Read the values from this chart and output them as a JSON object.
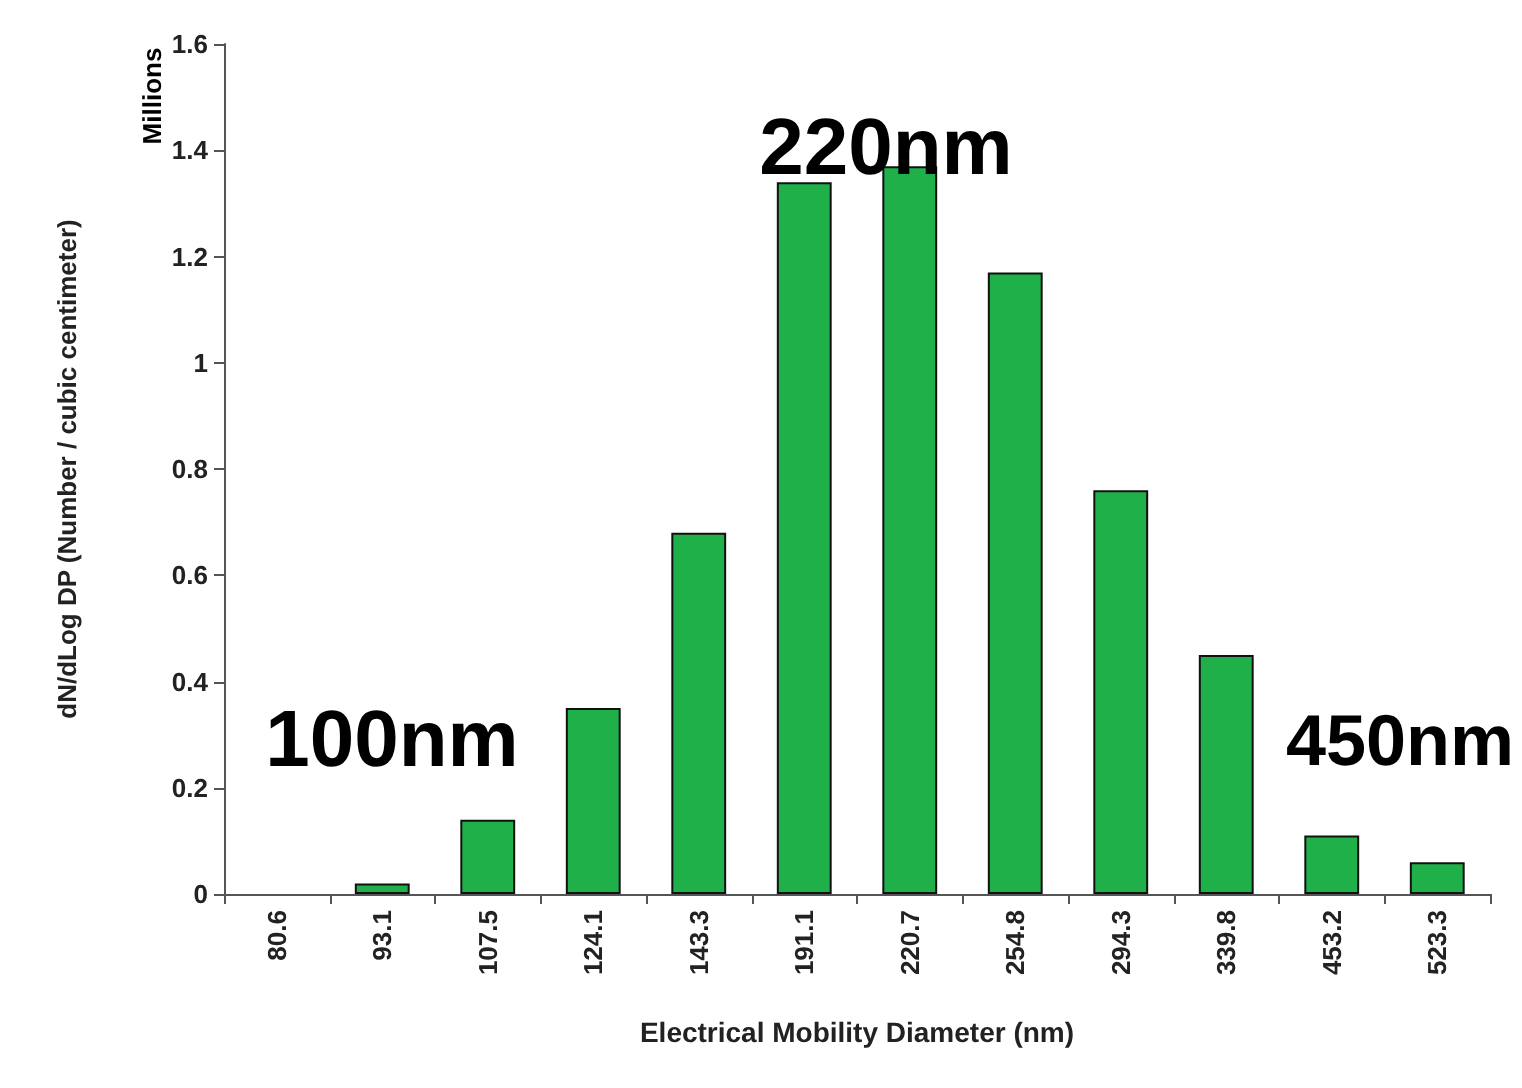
{
  "chart_data": {
    "type": "bar",
    "xlabel": "Electrical Mobility Diameter (nm)",
    "ylabel": "dN/dLog DP (Number / cubic centimeter)",
    "categories": [
      "80.6",
      "93.1",
      "107.5",
      "124.1",
      "143.3",
      "191.1",
      "220.7",
      "254.8",
      "294.3",
      "339.8",
      "453.2",
      "523.3"
    ],
    "values": [
      0,
      0.02,
      0.14,
      0.35,
      0.68,
      1.34,
      1.37,
      1.17,
      0.76,
      0.45,
      0.11,
      0.06
    ],
    "color": "#1fb04a",
    "ylim": [
      0,
      1.6
    ],
    "yticks": [
      {
        "value": 0,
        "label": "0"
      },
      {
        "value": 0.2,
        "label": "0.2"
      },
      {
        "value": 0.4,
        "label": "0.4"
      },
      {
        "value": 0.6,
        "label": "0.6"
      },
      {
        "value": 0.8,
        "label": "0.8"
      },
      {
        "value": 1,
        "label": "1"
      },
      {
        "value": 1.2,
        "label": "1.2"
      },
      {
        "value": 1.4,
        "label": "1.4"
      },
      {
        "value": 1.6,
        "label": "1.6"
      }
    ],
    "grid": false,
    "annotations": [
      "Millions",
      "220nm",
      "100nm",
      "450nm"
    ]
  }
}
